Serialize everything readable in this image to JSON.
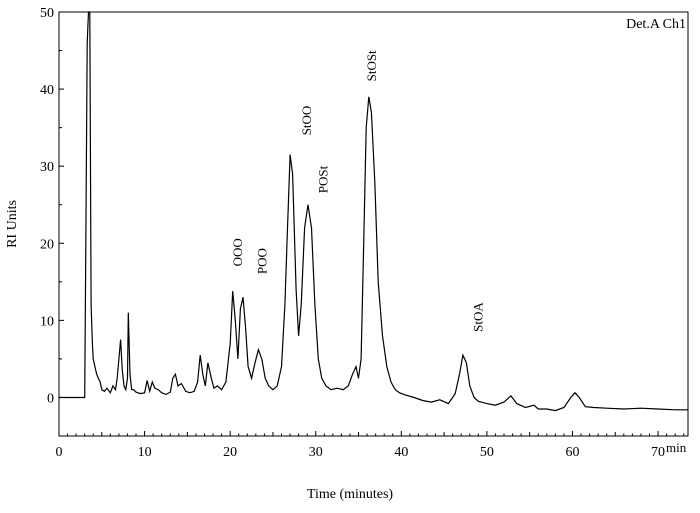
{
  "chart_data": {
    "type": "line",
    "title": "",
    "corner_label": "Det.A Ch1",
    "xlabel": "Time (minutes)",
    "ylabel": "RI Units",
    "x_unit_label": "min",
    "xlim": [
      0,
      73.5
    ],
    "ylim": [
      -5,
      50
    ],
    "x_ticks": [
      0,
      10,
      20,
      30,
      40,
      50,
      60,
      70
    ],
    "y_ticks": [
      0,
      10,
      20,
      30,
      40,
      50
    ],
    "grid": false,
    "series": [
      {
        "x": [
          0,
          3.0,
          3.1,
          3.3,
          3.45,
          3.6,
          3.75,
          3.9,
          4.0,
          4.2,
          4.4,
          4.6,
          4.8,
          5.0,
          5.3,
          5.6,
          6.0,
          6.3,
          6.6,
          6.8,
          7.0,
          7.2,
          7.4,
          7.6,
          7.8,
          8.0,
          8.1,
          8.3,
          8.5,
          8.7,
          9.0,
          9.5,
          10.0,
          10.3,
          10.6,
          10.9,
          11.2,
          11.6,
          12.0,
          12.5,
          13.0,
          13.3,
          13.6,
          13.9,
          14.3,
          14.8,
          15.3,
          15.8,
          16.2,
          16.5,
          16.8,
          17.1,
          17.4,
          17.8,
          18.1,
          18.5,
          19.0,
          19.5,
          20.0,
          20.3,
          20.6,
          20.9,
          21.2,
          21.5,
          21.8,
          22.1,
          22.5,
          22.9,
          23.3,
          23.7,
          24.1,
          24.5,
          25.0,
          25.5,
          26.0,
          26.4,
          26.7,
          27.0,
          27.3,
          27.7,
          28.0,
          28.3,
          28.7,
          29.1,
          29.5,
          29.9,
          30.3,
          30.7,
          31.2,
          31.8,
          32.5,
          33.2,
          33.8,
          34.3,
          34.7,
          35.0,
          35.3,
          35.6,
          35.9,
          36.2,
          36.5,
          36.9,
          37.3,
          37.8,
          38.3,
          38.8,
          39.3,
          39.8,
          40.5,
          41.5,
          42.5,
          43.5,
          44.5,
          45.5,
          46.3,
          46.8,
          47.2,
          47.6,
          48.0,
          48.5,
          49.0,
          50.0,
          51.0,
          52.0,
          52.8,
          53.5,
          54.5,
          55.5,
          56.0,
          57.0,
          58.0,
          59.0,
          59.8,
          60.3,
          60.8,
          61.5,
          62.5,
          64.0,
          66.0,
          68.0,
          70.0,
          72.0,
          73.5
        ],
        "y": [
          0,
          0,
          14,
          46,
          50,
          50,
          12,
          7,
          5,
          4,
          3,
          2.5,
          2,
          1,
          0.8,
          1.2,
          0.6,
          1.5,
          1.0,
          2.5,
          5.0,
          7.5,
          3.5,
          1.5,
          1.0,
          2.5,
          11,
          3.0,
          1.0,
          1.0,
          0.7,
          0.5,
          0.6,
          2.2,
          0.8,
          2.0,
          1.2,
          1.0,
          0.6,
          0.4,
          0.7,
          2.5,
          3.0,
          1.5,
          1.8,
          0.8,
          0.6,
          0.8,
          2.0,
          5.5,
          3.0,
          1.5,
          4.5,
          2.5,
          1.2,
          1.5,
          1.0,
          2.0,
          7.0,
          13.8,
          10.0,
          5.0,
          11.5,
          13.0,
          9.0,
          4.0,
          2.5,
          4.5,
          6.2,
          5.0,
          2.5,
          1.5,
          1.0,
          1.5,
          4.0,
          12.0,
          22.0,
          31.5,
          29.0,
          14.0,
          8.0,
          12.0,
          22.0,
          25.0,
          22.0,
          12.0,
          5.0,
          2.5,
          1.5,
          1.0,
          1.2,
          1.0,
          1.5,
          3.0,
          4.0,
          2.5,
          5.0,
          20.0,
          35.0,
          39.0,
          37.0,
          28.0,
          15.0,
          8.0,
          4.0,
          2.0,
          1.0,
          0.6,
          0.3,
          0.0,
          -0.4,
          -0.6,
          -0.3,
          -0.8,
          0.5,
          3.0,
          5.5,
          4.5,
          1.5,
          0.0,
          -0.5,
          -0.8,
          -1.0,
          -0.6,
          0.2,
          -0.8,
          -1.3,
          -1.0,
          -1.5,
          -1.5,
          -1.7,
          -1.3,
          0.0,
          0.6,
          0.0,
          -1.2,
          -1.3,
          -1.4,
          -1.5,
          -1.4,
          -1.5,
          -1.6,
          -1.6
        ]
      }
    ],
    "peak_labels": [
      {
        "text": "OOO",
        "x": 20.9,
        "y": 17.0
      },
      {
        "text": "POO",
        "x": 23.8,
        "y": 16.0
      },
      {
        "text": "StOO",
        "x": 29.0,
        "y": 34.0
      },
      {
        "text": "POSt",
        "x": 30.9,
        "y": 26.5
      },
      {
        "text": "StOSt",
        "x": 36.6,
        "y": 41.0
      },
      {
        "text": "StOA",
        "x": 49.0,
        "y": 8.5
      }
    ]
  }
}
